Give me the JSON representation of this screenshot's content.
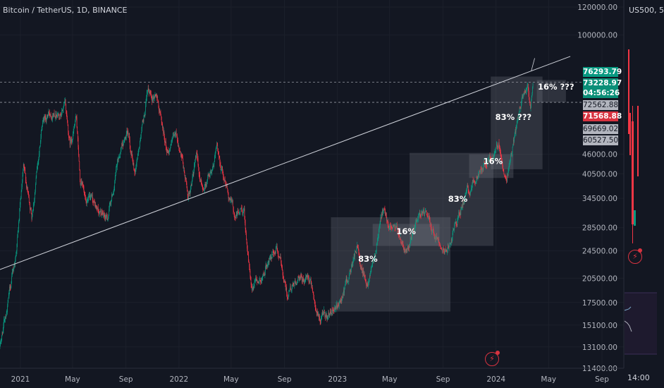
{
  "header": {
    "symbol": "Bitcoin / TetherUS, 1D, BINANCE",
    "side_symbol": "US500, 5"
  },
  "colors": {
    "up": "#089981",
    "down": "#f23645",
    "bg": "#131722",
    "grid": "#1f2430",
    "box": "rgba(120,123,134,0.28)"
  },
  "icons": [
    "lightning-icon"
  ],
  "price_tags": {
    "high": "76293.79",
    "last": "73228.97",
    "countdown": "04:56:26",
    "level1": "72562.88",
    "level2": "71568.88",
    "level3": "69669.02",
    "level4": "60527.50"
  },
  "side_panel": {
    "time_label": "14:00"
  },
  "chart_data": {
    "type": "candlestick",
    "yscale": "log",
    "ylim": [
      11400,
      120000
    ],
    "xlim": [
      "2020-11-15",
      "2024-10-05"
    ],
    "yticks": [
      "120000.00",
      "100000.00",
      "46000.00",
      "40500.00",
      "34500.00",
      "28500.00",
      "24500.00",
      "20500.00",
      "17500.00",
      "15100.00",
      "13100.00",
      "11400.00"
    ],
    "xticks": [
      "2021",
      "May",
      "Sep",
      "2022",
      "May",
      "Sep",
      "2023",
      "May",
      "Sep",
      "2024",
      "May",
      "Sep"
    ],
    "anchors": [
      [
        "2020-11-15",
        13100
      ],
      [
        "2020-12-20",
        23000
      ],
      [
        "2021-01-08",
        40500
      ],
      [
        "2021-01-27",
        31000
      ],
      [
        "2021-02-21",
        57000
      ],
      [
        "2021-03-13",
        61000
      ],
      [
        "2021-04-14",
        63500
      ],
      [
        "2021-04-25",
        49000
      ],
      [
        "2021-05-10",
        58000
      ],
      [
        "2021-05-19",
        37000
      ],
      [
        "2021-06-22",
        32000
      ],
      [
        "2021-07-20",
        30000
      ],
      [
        "2021-08-23",
        49500
      ],
      [
        "2021-09-07",
        52000
      ],
      [
        "2021-09-21",
        41000
      ],
      [
        "2021-10-20",
        66000
      ],
      [
        "2021-11-10",
        69000
      ],
      [
        "2021-12-04",
        47000
      ],
      [
        "2021-12-27",
        51500
      ],
      [
        "2022-01-22",
        35000
      ],
      [
        "2022-02-10",
        44500
      ],
      [
        "2022-02-24",
        36000
      ],
      [
        "2022-03-29",
        47500
      ],
      [
        "2022-05-09",
        31000
      ],
      [
        "2022-05-31",
        31800
      ],
      [
        "2022-06-18",
        18500
      ],
      [
        "2022-08-14",
        25000
      ],
      [
        "2022-09-07",
        18800
      ],
      [
        "2022-10-31",
        20800
      ],
      [
        "2022-11-21",
        15500
      ],
      [
        "2023-01-01",
        16500
      ],
      [
        "2023-02-16",
        24800
      ],
      [
        "2023-03-10",
        20000
      ],
      [
        "2023-04-14",
        31000
      ],
      [
        "2023-06-15",
        25000
      ],
      [
        "2023-07-13",
        31500
      ],
      [
        "2023-09-11",
        25000
      ],
      [
        "2023-10-24",
        35000
      ],
      [
        "2023-12-05",
        44000
      ],
      [
        "2024-01-11",
        48000
      ],
      [
        "2024-01-23",
        38600
      ],
      [
        "2024-02-14",
        52000
      ],
      [
        "2024-03-05",
        68000
      ],
      [
        "2024-03-14",
        73000
      ],
      [
        "2024-03-20",
        62000
      ],
      [
        "2024-03-26",
        71000
      ]
    ],
    "trendline": [
      [
        "2020-11-15",
        21700
      ],
      [
        "2024-06-20",
        87000
      ]
    ],
    "level_lines": [
      {
        "price": 73500,
        "style": "dashed"
      },
      {
        "price": 64500,
        "style": "dashed"
      }
    ],
    "boxes": [
      {
        "x1": "2022-12-17",
        "x2": "2023-09-18",
        "y1": 16500,
        "y2": 30500
      },
      {
        "x1": "2023-03-23",
        "x2": "2023-08-24",
        "y1": 25300,
        "y2": 29200
      },
      {
        "x1": "2023-06-16",
        "x2": "2023-12-26",
        "y1": 25300,
        "y2": 46400
      },
      {
        "x1": "2023-10-31",
        "x2": "2024-02-10",
        "y1": 39400,
        "y2": 46000
      },
      {
        "x1": "2023-12-20",
        "x2": "2024-04-17",
        "y1": 41700,
        "y2": 76300
      },
      {
        "x1": "2024-04-04",
        "x2": "2024-06-10",
        "y1": 64500,
        "y2": 74600
      }
    ],
    "annotations": [
      {
        "text": "83%",
        "x": "2023-03-12",
        "y": 22800
      },
      {
        "text": "16%",
        "x": "2023-06-08",
        "y": 27300
      },
      {
        "text": "83%",
        "x": "2023-10-05",
        "y": 33700
      },
      {
        "text": "16%",
        "x": "2023-12-25",
        "y": 43100
      },
      {
        "text": "83% ???",
        "x": "2024-02-10",
        "y": 57500
      },
      {
        "text": "16% ???",
        "x": "2024-05-18",
        "y": 70000
      }
    ],
    "title": "",
    "xlabel": "",
    "ylabel": "",
    "grid": true,
    "legend": "none"
  }
}
